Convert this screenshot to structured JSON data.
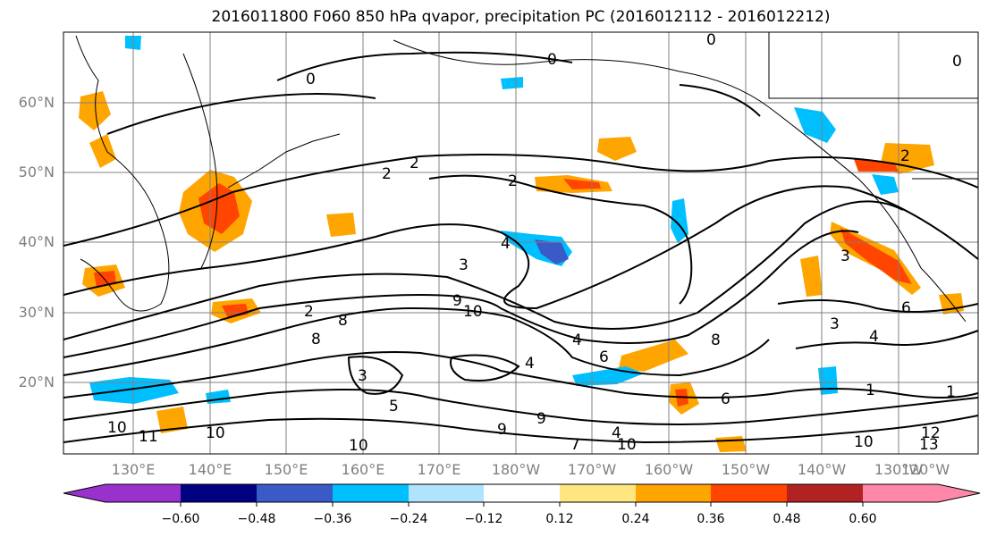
{
  "title": "2016011800 F060 850 hPa qvapor, precipitation PC (2016012112 - 2016012212)",
  "map": {
    "lat_labels": [
      "60°N",
      "50°N",
      "40°N",
      "30°N",
      "20°N"
    ],
    "lon_labels": [
      "130°E",
      "140°E",
      "150°E",
      "160°E",
      "170°E",
      "180°W",
      "170°W",
      "160°W",
      "150°W",
      "140°W",
      "130°W",
      "120°W"
    ],
    "contour_labels": [
      "0",
      "0",
      "0",
      "0",
      "2",
      "2",
      "2",
      "2",
      "3",
      "3",
      "3",
      "4",
      "4",
      "4",
      "5",
      "6",
      "6",
      "6",
      "7",
      "8",
      "8",
      "8",
      "9",
      "9",
      "10",
      "10",
      "10",
      "10",
      "11",
      "12",
      "13",
      "1",
      "1",
      "3",
      "4",
      "2",
      "4",
      "9",
      "10",
      "10"
    ]
  },
  "colorbar": {
    "colors": [
      "#9932cc",
      "#000080",
      "#3a5ac8",
      "#00bfff",
      "#afe4fc",
      "#ffffff",
      "#ffe680",
      "#ffa500",
      "#ff4500",
      "#b22222",
      "#ff88aa"
    ],
    "labels": [
      "−0.60",
      "−0.48",
      "−0.36",
      "−0.24",
      "−0.12",
      "0.12",
      "0.24",
      "0.36",
      "0.48",
      "0.60"
    ]
  }
}
